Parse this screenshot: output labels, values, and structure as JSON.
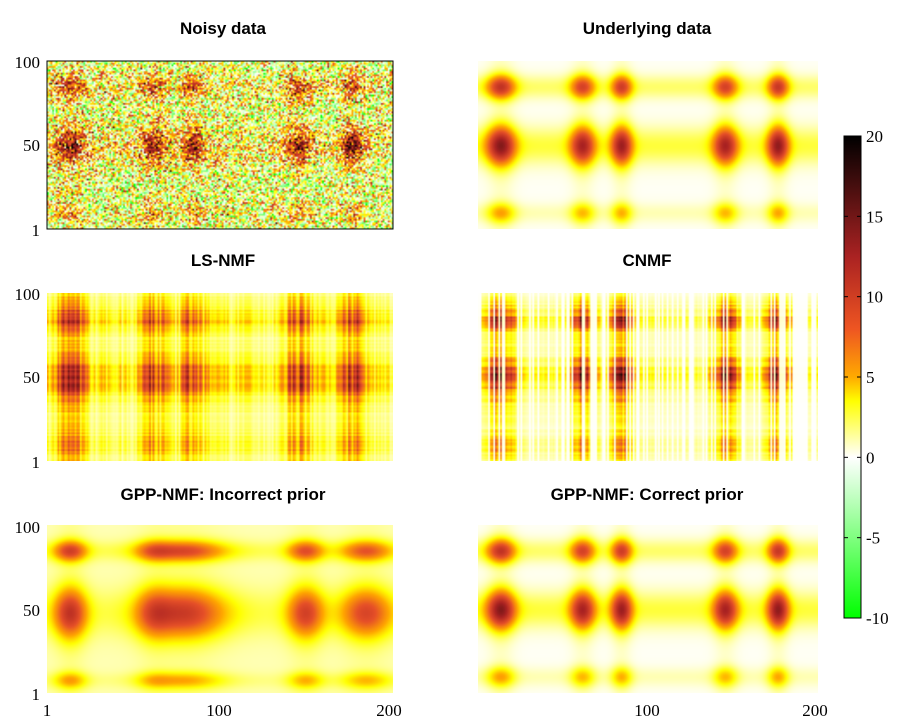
{
  "chart_data": {
    "type": "heatmap",
    "x_range": [
      1,
      200
    ],
    "y_range": [
      1,
      100
    ],
    "x_ticks": [
      1,
      100,
      200
    ],
    "y_ticks": [
      1,
      50,
      100
    ],
    "colorbar": {
      "range": [
        -10,
        20
      ],
      "ticks": [
        20,
        15,
        10,
        5,
        0,
        -5,
        -10
      ],
      "colors": {
        "low": "#00ff00",
        "zero": "#ffffff",
        "mid": "#ffff00",
        "high": "#ff8000",
        "peak": "#cc2222",
        "top": "#000000"
      }
    },
    "panels": [
      {
        "title": "Noisy data",
        "kind": "noisy"
      },
      {
        "title": "Underlying data",
        "kind": "smooth_correct"
      },
      {
        "title": "LS-NMF",
        "kind": "streaky"
      },
      {
        "title": "CNMF",
        "kind": "streaky_sparse"
      },
      {
        "title": "GPP-NMF: Incorrect prior",
        "kind": "smooth_incorrect"
      },
      {
        "title": "GPP-NMF: Correct prior",
        "kind": "smooth_correct"
      }
    ]
  }
}
